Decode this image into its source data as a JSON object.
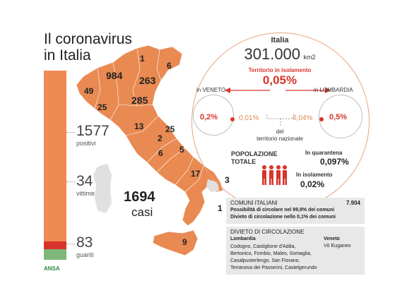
{
  "title": {
    "line1": "Il coronavirus",
    "line2": "in Italia"
  },
  "stats": {
    "positivi": {
      "value": "1577",
      "label": "positivi"
    },
    "vittime": {
      "value": "34",
      "label": "vittime"
    },
    "guariti": {
      "value": "83",
      "label": "guariti"
    }
  },
  "casi": {
    "value": "1694",
    "label": "casi"
  },
  "map_numbers": [
    "1",
    "6",
    "984",
    "263",
    "49",
    "285",
    "25",
    "13",
    "25",
    "2",
    "6",
    "5",
    "17",
    "3",
    "1",
    "9"
  ],
  "source": "ANSA",
  "italia": {
    "label": "Italia",
    "area": "301.000",
    "area_unit": "km2",
    "isolation_title": "Territorio in isolamento",
    "isolation_pct": "0,05%",
    "veneto_label": "in VENETO",
    "lombardia_label": "in LOMBARDIA",
    "veneto_pct": "0,2%",
    "veneto_nat_pct": "0,01%",
    "lombardia_nat_pct": "0,04%",
    "lombardia_pct": "0,5%",
    "del_label": "del",
    "territorio_label": "territorio nazionale"
  },
  "popolazione": {
    "label_line1": "POPOLAZIONE",
    "label_line2": "TOTALE",
    "quarantena_label": "In quarantena",
    "quarantena_value": "0,097%",
    "isolamento_label": "In isolamento",
    "isolamento_value": "0,02%"
  },
  "comuni": {
    "label": "COMUNI ITALIANI",
    "value": "7.904",
    "line1": "Possibilità di circolare nel 99,9% dei comuni",
    "line2": "Divieto di circolazione nello 0,1% dei comuni"
  },
  "divieto": {
    "title": "DIVIETO DI CIRCOLAZIONE",
    "lombardia_label": "Lombardia",
    "veneto_label": "Veneto",
    "veneto_town": "Vò Euganeo",
    "lombardia_towns": [
      "Codogno, Castiglione d'Adda,",
      "Bertonico, Fombio, Maleo, Somaglia,",
      "Casalpusterlengo, San Fiorano,",
      "Terranova dei Passerini, Castelgerundo"
    ]
  },
  "colors": {
    "accent": "#ef8a52",
    "red": "#d9342b",
    "green": "#7fb77a",
    "map": "#e98a52"
  },
  "icons": [
    "people-group-icon"
  ]
}
